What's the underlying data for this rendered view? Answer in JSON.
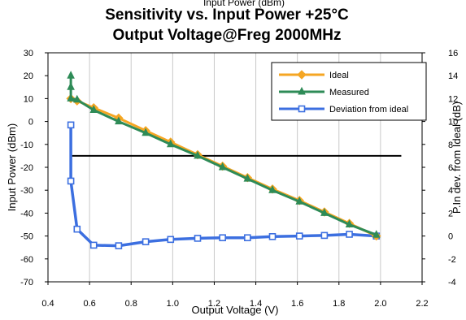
{
  "chart_data": {
    "type": "line",
    "cut_title": "Input Power (dBm)",
    "title": "Sensitivity vs. Input Power +25°C",
    "subtitle": "Output Voltage@Freg 2000MHz",
    "xlabel": "Output Voltage (V)",
    "ylabel": "Input Power (dBm)",
    "y2label": "P.In dev. from Ideal (dB)",
    "xlim": [
      0.4,
      2.2
    ],
    "ylim": [
      -70,
      30
    ],
    "y2lim": [
      -4,
      16
    ],
    "x_ticks": [
      "0.4",
      "0.6",
      "0.8",
      "1.0",
      "1.2",
      "1.4",
      "1.6",
      "1.8",
      "2.0",
      "2.2"
    ],
    "y_ticks": [
      "30",
      "20",
      "10",
      "0",
      "-10",
      "-20",
      "-30",
      "-40",
      "-50",
      "-60",
      "-70"
    ],
    "y2_ticks": [
      "16",
      "14",
      "12",
      "10",
      "8",
      "6",
      "4",
      "2",
      "0",
      "-2",
      "-4"
    ],
    "grid": "vertical",
    "legend_position": "top-right",
    "reference_line": {
      "y": -15,
      "x_range": [
        0.51,
        2.1
      ]
    },
    "series": [
      {
        "name": "Ideal",
        "color": "#F5A623",
        "marker": "diamond",
        "axis": "left",
        "points": [
          [
            0.51,
            10
          ],
          [
            0.54,
            9
          ],
          [
            0.62,
            6
          ],
          [
            0.74,
            1.5
          ],
          [
            0.87,
            -4
          ],
          [
            0.99,
            -9
          ],
          [
            1.12,
            -14.5
          ],
          [
            1.24,
            -19.5
          ],
          [
            1.36,
            -24.5
          ],
          [
            1.48,
            -29.5
          ],
          [
            1.61,
            -34.5
          ],
          [
            1.73,
            -39.5
          ],
          [
            1.85,
            -44.5
          ],
          [
            1.98,
            -50
          ]
        ]
      },
      {
        "name": "Measured",
        "color": "#2E8B57",
        "marker": "triangle",
        "axis": "left",
        "points": [
          [
            0.51,
            20
          ],
          [
            0.51,
            15
          ],
          [
            0.51,
            10
          ],
          [
            0.54,
            9.5
          ],
          [
            0.62,
            5
          ],
          [
            0.74,
            0
          ],
          [
            0.87,
            -5
          ],
          [
            0.99,
            -10
          ],
          [
            1.12,
            -15
          ],
          [
            1.24,
            -20
          ],
          [
            1.36,
            -25
          ],
          [
            1.48,
            -30
          ],
          [
            1.61,
            -35
          ],
          [
            1.73,
            -40
          ],
          [
            1.85,
            -45
          ],
          [
            1.98,
            -49.5
          ]
        ]
      },
      {
        "name": "Deviation from ideal",
        "color": "#3C6FE0",
        "marker": "square",
        "axis": "right",
        "points": [
          [
            0.51,
            9.7
          ],
          [
            0.51,
            4.8
          ],
          [
            0.54,
            0.6
          ],
          [
            0.62,
            -0.8
          ],
          [
            0.74,
            -0.85
          ],
          [
            0.87,
            -0.5
          ],
          [
            0.99,
            -0.3
          ],
          [
            1.12,
            -0.2
          ],
          [
            1.24,
            -0.15
          ],
          [
            1.36,
            -0.15
          ],
          [
            1.48,
            -0.05
          ],
          [
            1.61,
            0.0
          ],
          [
            1.73,
            0.05
          ],
          [
            1.85,
            0.15
          ],
          [
            1.98,
            0.0
          ]
        ]
      }
    ]
  }
}
